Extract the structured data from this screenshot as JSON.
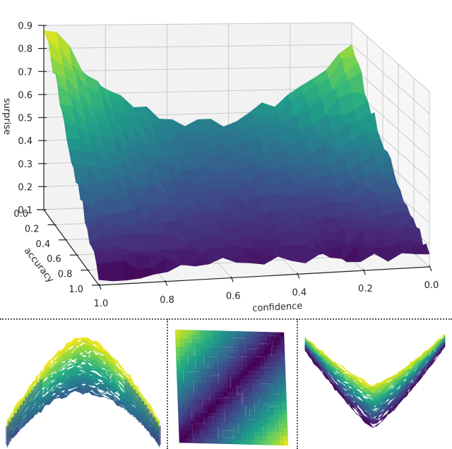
{
  "chart_data": [
    {
      "type": "surface3d",
      "panel": "main",
      "title": "",
      "xlabel": "confidence",
      "ylabel": "accuracy",
      "zlabel": "surprise",
      "x_ticks": [
        "1.0",
        "0.8",
        "0.6",
        "0.4",
        "0.2",
        "0.0"
      ],
      "y_ticks": [
        "0.0",
        "0.2",
        "0.4",
        "0.6",
        "0.8",
        "1.0"
      ],
      "z_ticks": [
        "0.1",
        "0.2",
        "0.3",
        "0.4",
        "0.5",
        "0.6",
        "0.7",
        "0.8",
        "0.9"
      ],
      "xlim": [
        0,
        1
      ],
      "ylim": [
        0,
        1
      ],
      "zlim": [
        0.1,
        0.9
      ],
      "colormap": "viridis",
      "grid": true,
      "grid_points": {
        "confidence": [
          0.0,
          0.2,
          0.4,
          0.6,
          0.8,
          1.0
        ],
        "accuracy": [
          0.0,
          0.2,
          0.4,
          0.6,
          0.8,
          1.0
        ],
        "surprise": [
          [
            0.8,
            0.58,
            0.45,
            0.48,
            0.62,
            0.9
          ],
          [
            0.62,
            0.48,
            0.38,
            0.4,
            0.52,
            0.75
          ],
          [
            0.48,
            0.38,
            0.32,
            0.33,
            0.42,
            0.58
          ],
          [
            0.35,
            0.28,
            0.26,
            0.27,
            0.33,
            0.42
          ],
          [
            0.25,
            0.2,
            0.22,
            0.22,
            0.25,
            0.28
          ],
          [
            0.16,
            0.16,
            0.18,
            0.17,
            0.15,
            0.13
          ]
        ]
      }
    },
    {
      "type": "surface3d",
      "panel": "bottom-left",
      "view": "side view (arch shape)",
      "colormap": "viridis"
    },
    {
      "type": "heatmap",
      "panel": "bottom-center",
      "view": "top-down view",
      "colormap": "viridis",
      "corners": {
        "top_left": "high",
        "top_right": "low",
        "bottom_left": "low",
        "bottom_right": "high"
      }
    },
    {
      "type": "surface3d",
      "panel": "bottom-right",
      "view": "side view (V shape)",
      "colormap": "viridis"
    }
  ],
  "colors": {
    "viridis": [
      "#440154",
      "#482878",
      "#3e4989",
      "#31688e",
      "#26828e",
      "#1f9e89",
      "#35b779",
      "#6ece58",
      "#b5de2b",
      "#fde725"
    ],
    "pane": "#f2f2f2",
    "grid": "#c8c8c8",
    "axis": "#222222"
  }
}
